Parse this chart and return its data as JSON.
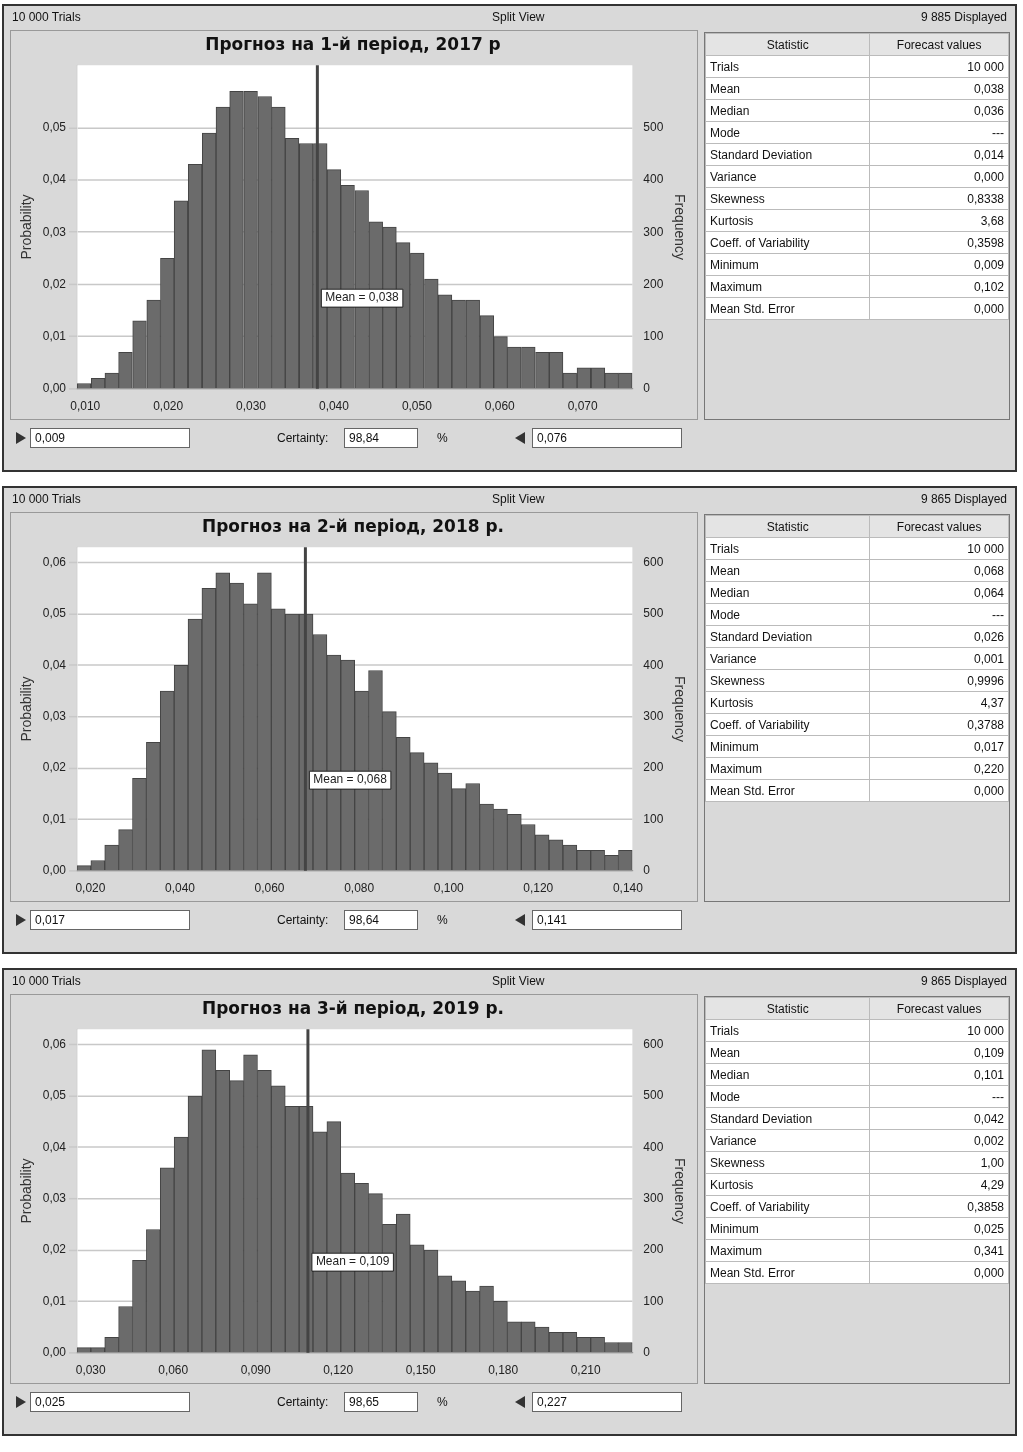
{
  "chart_data": [
    {
      "type": "histogram",
      "title": "Прогноз на 1-й період, 2017 р",
      "color": "#6b6b6b",
      "bins": [
        0.009,
        0.0107,
        0.0124,
        0.014,
        0.0157,
        0.0174,
        0.0191,
        0.0207,
        0.0224,
        0.0241,
        0.0258,
        0.0274,
        0.0291,
        0.0308,
        0.0325,
        0.0341,
        0.0358,
        0.0375,
        0.0392,
        0.0408,
        0.0425,
        0.0442,
        0.0459,
        0.0475,
        0.0492,
        0.0509,
        0.0526,
        0.0542,
        0.0559,
        0.0576,
        0.0593,
        0.0609,
        0.0626,
        0.0643,
        0.066,
        0.0676,
        0.0693,
        0.071,
        0.0727,
        0.0743,
        0.076
      ],
      "values": [
        0.001,
        0.002,
        0.003,
        0.007,
        0.013,
        0.017,
        0.025,
        0.036,
        0.043,
        0.049,
        0.054,
        0.057,
        0.057,
        0.056,
        0.054,
        0.048,
        0.047,
        0.047,
        0.042,
        0.039,
        0.038,
        0.032,
        0.031,
        0.028,
        0.026,
        0.021,
        0.018,
        0.017,
        0.017,
        0.014,
        0.01,
        0.008,
        0.008,
        0.007,
        0.007,
        0.003,
        0.004,
        0.004,
        0.003,
        0.003
      ],
      "xlim": [
        0.009,
        0.076
      ],
      "xticks": [
        {
          "value": 0.01,
          "label": "0,010"
        },
        {
          "value": 0.02,
          "label": "0,020"
        },
        {
          "value": 0.03,
          "label": "0,030"
        },
        {
          "value": 0.04,
          "label": "0,040"
        },
        {
          "value": 0.05,
          "label": "0,050"
        },
        {
          "value": 0.06,
          "label": "0,060"
        },
        {
          "value": 0.07,
          "label": "0,070"
        }
      ],
      "ylim": [
        0,
        0.062
      ],
      "yticks": [
        {
          "value": 0,
          "label": "0,00"
        },
        {
          "value": 0.01,
          "label": "0,01"
        },
        {
          "value": 0.02,
          "label": "0,02"
        },
        {
          "value": 0.03,
          "label": "0,03"
        },
        {
          "value": 0.04,
          "label": "0,04"
        },
        {
          "value": 0.05,
          "label": "0,05"
        }
      ],
      "ylabel": "Probability",
      "y2label": "Frequency",
      "y2lim": [
        0,
        620
      ],
      "y2ticks": [
        0,
        100,
        200,
        300,
        400,
        500
      ],
      "grid": "y",
      "ref_lines": [
        {
          "axis": "x",
          "value": 0.038,
          "label": "Mean = 0,038",
          "color": "#444444"
        }
      ],
      "annotations": [
        "10 000 Trials",
        "Split View",
        "9 885 Displayed",
        "Statistic",
        "Forecast values",
        "Trials",
        "10 000",
        "Mean",
        "0,038",
        "Median",
        "0,036",
        "Mode",
        "---",
        "Standard Deviation",
        "0,014",
        "Variance",
        "0,000",
        "Skewness",
        "0,8338",
        "Kurtosis",
        "3,68",
        "Coeff. of Variability",
        "0,3598",
        "Minimum",
        "0,009",
        "Maximum",
        "0,102",
        "Mean Std. Error",
        "0,000",
        "0,009",
        "Certainty:",
        "98,84",
        "%",
        "0,076"
      ]
    },
    {
      "type": "histogram",
      "title": "Прогноз на 2-й період, 2018 р.",
      "color": "#6b6b6b",
      "bins": [
        0.017,
        0.0201,
        0.0232,
        0.0263,
        0.0294,
        0.0325,
        0.0356,
        0.0387,
        0.0418,
        0.0449,
        0.048,
        0.0511,
        0.0542,
        0.0573,
        0.0604,
        0.0635,
        0.0666,
        0.0697,
        0.0728,
        0.0759,
        0.079,
        0.0821,
        0.0852,
        0.0883,
        0.0914,
        0.0945,
        0.0976,
        0.1007,
        0.1038,
        0.1069,
        0.11,
        0.1131,
        0.1162,
        0.1193,
        0.1224,
        0.1255,
        0.1286,
        0.1317,
        0.1348,
        0.1379,
        0.141
      ],
      "values": [
        0.001,
        0.002,
        0.005,
        0.008,
        0.018,
        0.025,
        0.035,
        0.04,
        0.049,
        0.055,
        0.058,
        0.056,
        0.052,
        0.058,
        0.051,
        0.05,
        0.05,
        0.046,
        0.042,
        0.041,
        0.035,
        0.039,
        0.031,
        0.026,
        0.023,
        0.021,
        0.019,
        0.016,
        0.017,
        0.013,
        0.012,
        0.011,
        0.009,
        0.007,
        0.006,
        0.005,
        0.004,
        0.004,
        0.003,
        0.004
      ],
      "xlim": [
        0.017,
        0.141
      ],
      "xticks": [
        {
          "value": 0.02,
          "label": "0,020"
        },
        {
          "value": 0.04,
          "label": "0,040"
        },
        {
          "value": 0.06,
          "label": "0,060"
        },
        {
          "value": 0.08,
          "label": "0,080"
        },
        {
          "value": 0.1,
          "label": "0,100"
        },
        {
          "value": 0.12,
          "label": "0,120"
        },
        {
          "value": 0.14,
          "label": "0,140"
        }
      ],
      "ylim": [
        0,
        0.063
      ],
      "yticks": [
        {
          "value": 0,
          "label": "0,00"
        },
        {
          "value": 0.01,
          "label": "0,01"
        },
        {
          "value": 0.02,
          "label": "0,02"
        },
        {
          "value": 0.03,
          "label": "0,03"
        },
        {
          "value": 0.04,
          "label": "0,04"
        },
        {
          "value": 0.05,
          "label": "0,05"
        },
        {
          "value": 0.06,
          "label": "0,06"
        }
      ],
      "ylabel": "Probability",
      "y2label": "Frequency",
      "y2lim": [
        0,
        630
      ],
      "y2ticks": [
        0,
        100,
        200,
        300,
        400,
        500,
        600
      ],
      "grid": "y",
      "ref_lines": [
        {
          "axis": "x",
          "value": 0.068,
          "label": "Mean = 0,068",
          "color": "#444444"
        }
      ],
      "annotations": [
        "10 000 Trials",
        "Split View",
        "9 865 Displayed",
        "Statistic",
        "Forecast values",
        "Trials",
        "10 000",
        "Mean",
        "0,068",
        "Median",
        "0,064",
        "Mode",
        "---",
        "Standard Deviation",
        "0,026",
        "Variance",
        "0,001",
        "Skewness",
        "0,9996",
        "Kurtosis",
        "4,37",
        "Coeff. of Variability",
        "0,3788",
        "Minimum",
        "0,017",
        "Maximum",
        "0,220",
        "Mean Std. Error",
        "0,000",
        "0,017",
        "Certainty:",
        "98,64",
        "%",
        "0,141"
      ]
    },
    {
      "type": "histogram",
      "title": "Прогноз на 3-й період, 2019 р.",
      "color": "#6b6b6b",
      "bins": [
        0.025,
        0.03005,
        0.0351,
        0.04015,
        0.0452,
        0.05025,
        0.0553,
        0.06035,
        0.0654,
        0.07045,
        0.0755,
        0.08055,
        0.0856,
        0.09065,
        0.0957,
        0.10075,
        0.1058,
        0.11085,
        0.1159,
        0.12095,
        0.126,
        0.13105,
        0.1361,
        0.14115,
        0.1462,
        0.15125,
        0.1563,
        0.16135,
        0.1664,
        0.17145,
        0.1765,
        0.18155,
        0.1866,
        0.19165,
        0.1967,
        0.20175,
        0.2068,
        0.21185,
        0.2169,
        0.22195,
        0.227
      ],
      "values": [
        0.001,
        0.001,
        0.003,
        0.009,
        0.018,
        0.024,
        0.036,
        0.042,
        0.05,
        0.059,
        0.055,
        0.053,
        0.058,
        0.055,
        0.052,
        0.048,
        0.048,
        0.043,
        0.045,
        0.035,
        0.033,
        0.031,
        0.025,
        0.027,
        0.021,
        0.02,
        0.015,
        0.014,
        0.012,
        0.013,
        0.01,
        0.006,
        0.006,
        0.005,
        0.004,
        0.004,
        0.003,
        0.003,
        0.002,
        0.002
      ],
      "xlim": [
        0.025,
        0.227
      ],
      "xticks": [
        {
          "value": 0.03,
          "label": "0,030"
        },
        {
          "value": 0.06,
          "label": "0,060"
        },
        {
          "value": 0.09,
          "label": "0,090"
        },
        {
          "value": 0.12,
          "label": "0,120"
        },
        {
          "value": 0.15,
          "label": "0,150"
        },
        {
          "value": 0.18,
          "label": "0,180"
        },
        {
          "value": 0.21,
          "label": "0,210"
        }
      ],
      "ylim": [
        0,
        0.063
      ],
      "yticks": [
        {
          "value": 0,
          "label": "0,00"
        },
        {
          "value": 0.01,
          "label": "0,01"
        },
        {
          "value": 0.02,
          "label": "0,02"
        },
        {
          "value": 0.03,
          "label": "0,03"
        },
        {
          "value": 0.04,
          "label": "0,04"
        },
        {
          "value": 0.05,
          "label": "0,05"
        },
        {
          "value": 0.06,
          "label": "0,06"
        }
      ],
      "ylabel": "Probability",
      "y2label": "Frequency",
      "y2lim": [
        0,
        630
      ],
      "y2ticks": [
        0,
        100,
        200,
        300,
        400,
        500,
        600
      ],
      "grid": "y",
      "ref_lines": [
        {
          "axis": "x",
          "value": 0.109,
          "label": "Mean = 0,109",
          "color": "#444444"
        }
      ],
      "annotations": [
        "10 000 Trials",
        "Split View",
        "9 865 Displayed",
        "Statistic",
        "Forecast values",
        "Trials",
        "10 000",
        "Mean",
        "0,109",
        "Median",
        "0,101",
        "Mode",
        "---",
        "Standard Deviation",
        "0,042",
        "Variance",
        "0,002",
        "Skewness",
        "1,00",
        "Kurtosis",
        "4,29",
        "Coeff. of Variability",
        "0,3858",
        "Minimum",
        "0,025",
        "Maximum",
        "0,341",
        "Mean Std. Error",
        "0,000",
        "0,025",
        "Certainty:",
        "98,65",
        "%",
        "0,227"
      ]
    }
  ]
}
